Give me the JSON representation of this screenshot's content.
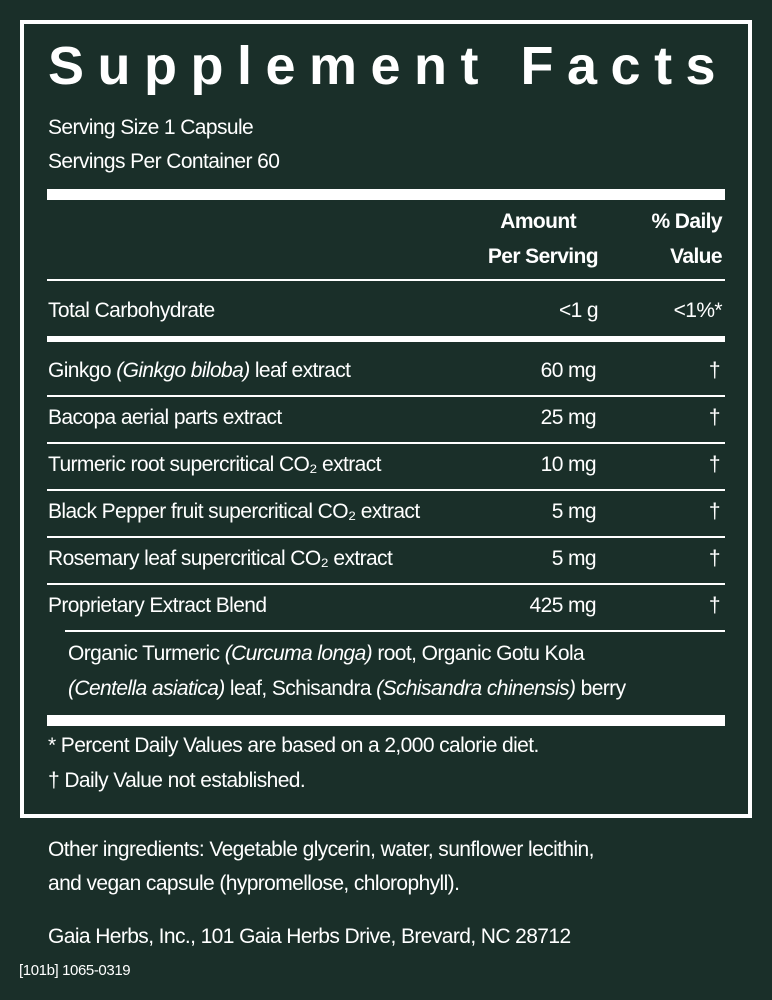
{
  "title": "Supplement Facts",
  "serving_size": "Serving Size 1 Capsule",
  "servings_per_container": "Servings Per Container 60",
  "header": {
    "amount_line1": "Amount",
    "amount_line2": "Per Serving",
    "dv_line1": "% Daily",
    "dv_line2": "Value"
  },
  "total_carb": {
    "name": "Total Carbohydrate",
    "amount": "<1 g",
    "dv": "<1%*"
  },
  "rows": [
    {
      "name_pre": "Ginkgo ",
      "name_italic": "(Ginkgo biloba)",
      "name_post": " leaf extract",
      "amount": "60 mg",
      "dv": "†"
    },
    {
      "name_pre": "Bacopa aerial parts extract",
      "name_italic": "",
      "name_post": "",
      "amount": "25 mg",
      "dv": "†"
    },
    {
      "name_pre": "Turmeric root supercritical CO₂ extract",
      "name_italic": "",
      "name_post": "",
      "amount": "10 mg",
      "dv": "†"
    },
    {
      "name_pre": "Black Pepper fruit supercritical CO₂ extract",
      "name_italic": "",
      "name_post": "",
      "amount": "5 mg",
      "dv": "†"
    },
    {
      "name_pre": "Rosemary leaf supercritical CO₂ extract",
      "name_italic": "",
      "name_post": "",
      "amount": "5 mg",
      "dv": "†"
    },
    {
      "name_pre": "Proprietary Extract Blend",
      "name_italic": "",
      "name_post": "",
      "amount": "425 mg",
      "dv": "†"
    }
  ],
  "blend": {
    "l1_a": "Organic Turmeric ",
    "l1_b": "(Curcuma longa)",
    "l1_c": " root, Organic Gotu Kola",
    "l2_a": "(Centella asiatica)",
    "l2_b": " leaf, Schisandra ",
    "l2_c": "(Schisandra chinensis)",
    "l2_d": " berry"
  },
  "footnotes": {
    "percent": "*  Percent Daily Values are based on a 2,000 calorie diet.",
    "dagger": "† Daily Value not established."
  },
  "other_ingredients_1": "Other ingredients: Vegetable glycerin, water, sunflower lecithin,",
  "other_ingredients_2": "and vegan capsule (hypromellose, chlorophyll).",
  "address": "Gaia Herbs, Inc., 101 Gaia Herbs Drive, Brevard, NC 28712",
  "code": "[101b] 1065-0319",
  "colors": {
    "background": "#1a2f29",
    "text": "#ffffff"
  }
}
